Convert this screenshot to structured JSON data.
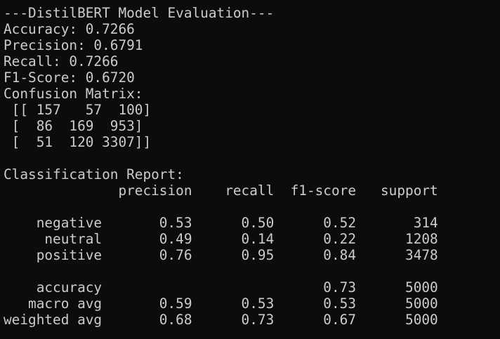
{
  "terminal": {
    "lines": [
      "---DistilBERT Model Evaluation---",
      "Accuracy: 0.7266",
      "Precision: 0.6791",
      "Recall: 0.7266",
      "F1-Score: 0.6720",
      "Confusion Matrix:",
      " [[ 157   57  100]",
      " [  86  169  953]",
      " [  51  120 3307]]",
      "",
      "Classification Report:",
      "              precision    recall  f1-score   support",
      "",
      "    negative       0.53      0.50      0.52       314",
      "     neutral       0.49      0.14      0.22      1208",
      "    positive       0.76      0.95      0.84      3478",
      "",
      "    accuracy                           0.73      5000",
      "   macro avg       0.59      0.53      0.53      5000",
      "weighted avg       0.68      0.73      0.67      5000"
    ]
  }
}
